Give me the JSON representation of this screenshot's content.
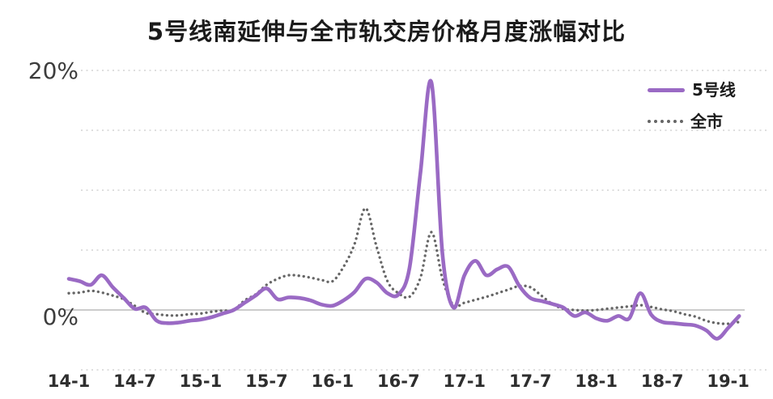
{
  "title": "5号线南延伸与全市轨交房价格月度涨幅对比",
  "legend": {
    "line5_label": "5号线",
    "city_label": "全市"
  },
  "colors": {
    "line5": "#9a6ac4",
    "city": "#666666",
    "gridline": "#d3d3d3",
    "zero_line": "#aeaeae",
    "y_label": "#3d3d3d",
    "x_label": "#2e2e2e"
  },
  "chart_data": {
    "type": "line",
    "title": "5号线南延伸与全市轨交房价格月度涨幅对比",
    "y_unit": "%",
    "grid": "horizontal-dotted",
    "legend_position": "top-right",
    "ylim": [
      -5.5,
      21
    ],
    "gridlines_percent": [
      20,
      15,
      10,
      5,
      0,
      -5
    ],
    "y_axis_labels": [
      {
        "text": "20%",
        "value": 20
      },
      {
        "text": "0%",
        "value": 0
      }
    ],
    "x_tick_every": 6,
    "x_tick_labels": [
      "14-1",
      "14-7",
      "15-1",
      "15-7",
      "16-1",
      "16-7",
      "17-1",
      "17-7",
      "18-1",
      "18-7",
      "19-1"
    ],
    "x": [
      "14-1",
      "14-2",
      "14-3",
      "14-4",
      "14-5",
      "14-6",
      "14-7",
      "14-8",
      "14-9",
      "14-10",
      "14-11",
      "14-12",
      "15-1",
      "15-2",
      "15-3",
      "15-4",
      "15-5",
      "15-6",
      "15-7",
      "15-8",
      "15-9",
      "15-10",
      "15-11",
      "15-12",
      "16-1",
      "16-2",
      "16-3",
      "16-4",
      "16-5",
      "16-6",
      "16-7",
      "16-8",
      "16-9",
      "16-10",
      "16-11",
      "16-12",
      "17-1",
      "17-2",
      "17-3",
      "17-4",
      "17-5",
      "17-6",
      "17-7",
      "17-8",
      "17-9",
      "17-10",
      "17-11",
      "17-12",
      "18-1",
      "18-2",
      "18-3",
      "18-4",
      "18-5",
      "18-6",
      "18-7",
      "18-8",
      "18-9",
      "18-10",
      "18-11",
      "18-12",
      "19-1",
      "19-2"
    ],
    "series": [
      {
        "name": "5号线",
        "line_style": "solid",
        "color": "#9a6ac4",
        "values": [
          2.6,
          2.4,
          2.1,
          2.9,
          1.9,
          1.0,
          0.1,
          0.2,
          -0.9,
          -1.1,
          -1.05,
          -0.9,
          -0.8,
          -0.6,
          -0.3,
          0.0,
          0.6,
          1.2,
          1.8,
          0.9,
          1.05,
          1.0,
          0.8,
          0.45,
          0.35,
          0.8,
          1.5,
          2.6,
          2.3,
          1.4,
          1.3,
          3.5,
          11.5,
          19.0,
          4.7,
          0.2,
          2.9,
          4.1,
          2.9,
          3.4,
          3.6,
          2.0,
          1.0,
          0.75,
          0.5,
          0.2,
          -0.5,
          -0.2,
          -0.7,
          -0.9,
          -0.5,
          -0.7,
          1.4,
          -0.4,
          -1.0,
          -1.1,
          -1.2,
          -1.3,
          -1.7,
          -2.4,
          -1.5,
          -0.5
        ]
      },
      {
        "name": "全市",
        "line_style": "dotted",
        "color": "#666666",
        "values": [
          1.4,
          1.45,
          1.6,
          1.45,
          1.2,
          0.9,
          0.35,
          -0.25,
          -0.35,
          -0.45,
          -0.45,
          -0.35,
          -0.3,
          -0.15,
          -0.05,
          0.0,
          0.8,
          1.3,
          2.1,
          2.6,
          2.9,
          2.85,
          2.7,
          2.5,
          2.4,
          3.6,
          5.5,
          8.5,
          5.3,
          2.4,
          1.4,
          1.1,
          2.7,
          6.5,
          2.6,
          0.4,
          0.6,
          0.85,
          1.1,
          1.4,
          1.7,
          2.0,
          1.9,
          1.2,
          0.5,
          0.1,
          0.0,
          -0.05,
          0.0,
          0.1,
          0.2,
          0.3,
          0.4,
          0.25,
          0.05,
          -0.1,
          -0.35,
          -0.55,
          -0.9,
          -1.1,
          -1.15,
          -1.0
        ]
      }
    ]
  }
}
